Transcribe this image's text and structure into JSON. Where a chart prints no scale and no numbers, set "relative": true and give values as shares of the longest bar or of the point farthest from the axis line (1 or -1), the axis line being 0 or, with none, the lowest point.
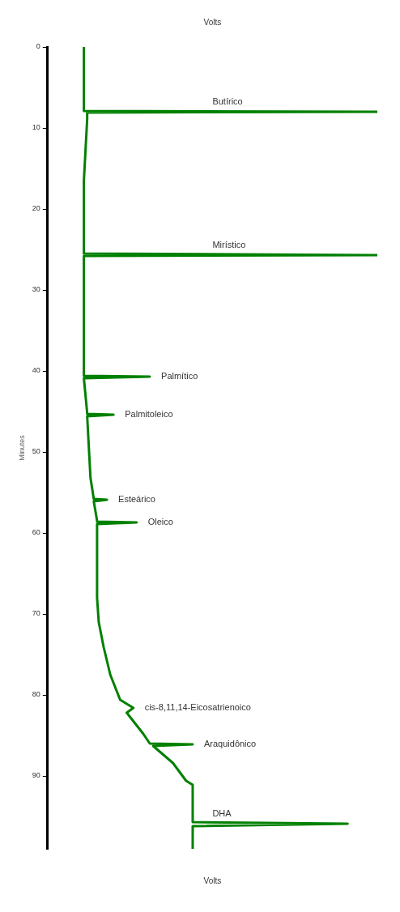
{
  "chart_data": {
    "type": "line",
    "orientation": "horizontal",
    "relative": true,
    "ylabel": "Minutes",
    "xlabel": "Volts",
    "ylim": [
      99,
      0
    ],
    "yticks": [
      0,
      10,
      20,
      30,
      40,
      50,
      60,
      70,
      80,
      90
    ],
    "legend": false,
    "grid": false,
    "marker": "none",
    "line_style": "solid",
    "series": [
      {
        "color": "#008000",
        "x": [
          0,
          7.7,
          7.9,
          8.0,
          8.1,
          8.3,
          8.9,
          16.5,
          25.5,
          25.7,
          25.8,
          26.0,
          40.4,
          40.6,
          40.7,
          40.9,
          45.2,
          45.3,
          45.4,
          45.6,
          53.2,
          55.8,
          55.9,
          56.1,
          58.5,
          58.6,
          58.7,
          58.9,
          68,
          71,
          74.1,
          77.5,
          80.6,
          81.6,
          82.2,
          84.8,
          86.0,
          86.1,
          86.3,
          88.4,
          90.6,
          91.1,
          94.3,
          95.7,
          95.9,
          96.2,
          99
        ],
        "values": [
          0.11,
          0.11,
          0.11,
          1,
          0.12,
          0.12,
          0.12,
          0.11,
          0.11,
          1,
          0.11,
          0.11,
          0.11,
          0.11,
          0.31,
          0.11,
          0.12,
          0.12,
          0.2,
          0.12,
          0.13,
          0.14,
          0.18,
          0.14,
          0.15,
          0.15,
          0.27,
          0.15,
          0.15,
          0.155,
          0.17,
          0.19,
          0.22,
          0.26,
          0.24,
          0.29,
          0.31,
          0.44,
          0.32,
          0.38,
          0.42,
          0.44,
          0.44,
          0.44,
          0.91,
          0.44,
          0.44
        ]
      }
    ],
    "annotations": [
      "Butírico",
      "Mirístico",
      "Palmítico",
      "Palmitoleico",
      "Esteárico",
      "Oleico",
      "cis-8,11,14-Eicosatrienoico",
      "Araquidônico",
      "DHA"
    ]
  }
}
